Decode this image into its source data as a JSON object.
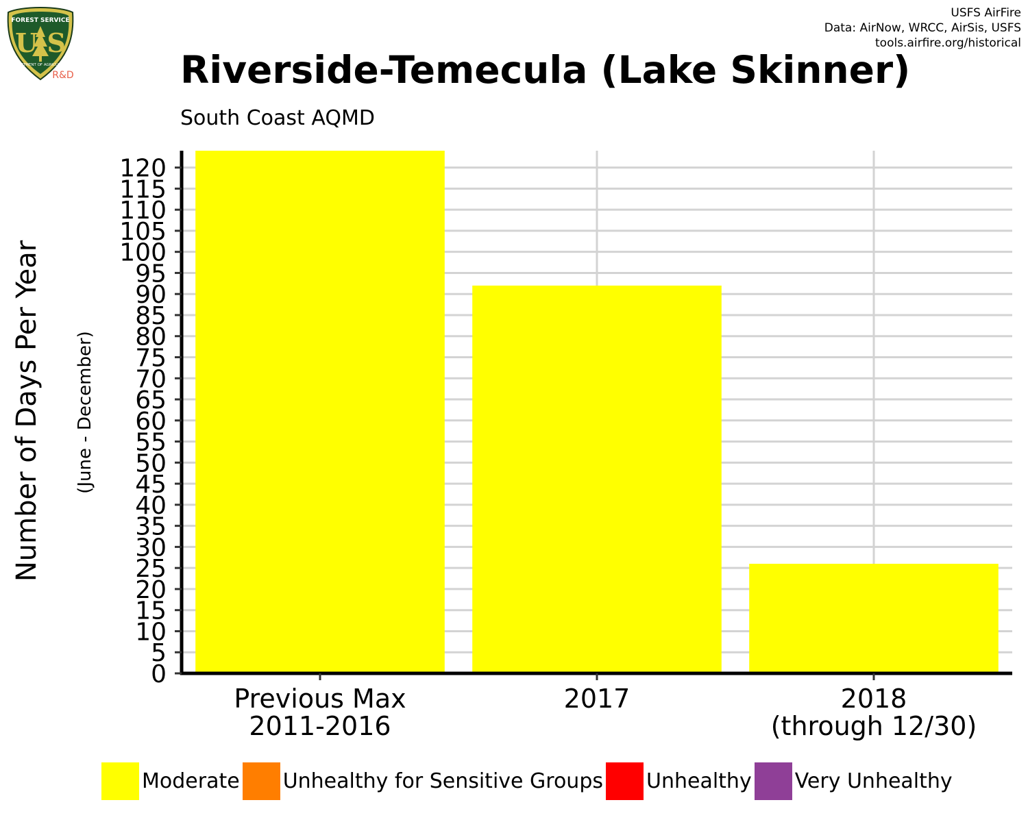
{
  "logo": {
    "top_text": "FOREST SERVICE",
    "letters": "U S",
    "bottom_text": "DEPARTMENT OF AGRICULTURE",
    "badge": "R&D",
    "icon": "usfs-shield-icon"
  },
  "credits": {
    "line1": "USFS AirFire",
    "line2": "Data: AirNow, WRCC, AirSis, USFS",
    "line3": "tools.airfire.org/historical"
  },
  "chart_data": {
    "type": "bar",
    "title": "Riverside-Temecula (Lake Skinner)",
    "subtitle": "South Coast AQMD",
    "ylabel": "Number of Days Per Year",
    "ylabel_sub": "(June - December)",
    "categories": [
      [
        "Previous Max",
        "2011-2016"
      ],
      [
        "2017"
      ],
      [
        "2018",
        "(through 12/30)"
      ]
    ],
    "series": [
      {
        "name": "Moderate",
        "color": "#FFFF00",
        "values": [
          124,
          92,
          26
        ]
      },
      {
        "name": "Unhealthy for Sensitive Groups",
        "color": "#FF7E00",
        "values": [
          0,
          0,
          0
        ]
      },
      {
        "name": "Unhealthy",
        "color": "#FF0000",
        "values": [
          0,
          0,
          0
        ]
      },
      {
        "name": "Very Unhealthy",
        "color": "#8F3F97",
        "values": [
          0,
          0,
          0
        ]
      }
    ],
    "yticks": [
      0,
      5,
      10,
      15,
      20,
      25,
      30,
      35,
      40,
      45,
      50,
      55,
      60,
      65,
      70,
      75,
      80,
      85,
      90,
      95,
      100,
      105,
      110,
      115,
      120
    ],
    "ylim": [
      0,
      124
    ],
    "grid": true,
    "legend_position": "bottom"
  }
}
